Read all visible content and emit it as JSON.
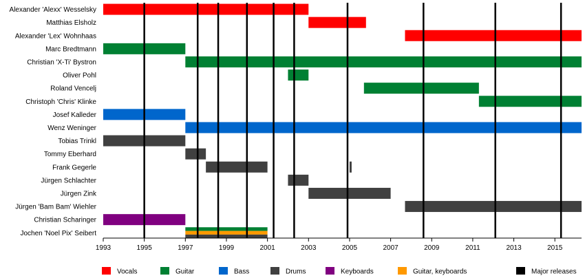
{
  "chart_data": {
    "type": "timeline",
    "title": "",
    "xlabel": "",
    "ylabel": "",
    "xlim": [
      1993,
      2016.3
    ],
    "x_ticks": [
      1993,
      1995,
      1997,
      1999,
      2001,
      2003,
      2005,
      2007,
      2009,
      2011,
      2013,
      2015
    ],
    "role_colors": {
      "Vocals": "#ff0000",
      "Guitar": "#008033",
      "Bass": "#0066cc",
      "Drums": "#404040",
      "Keyboards": "#800080",
      "Guitar, keyboards": "#ff9900",
      "Major releases": "#000000"
    },
    "legend": [
      "Vocals",
      "Guitar",
      "Bass",
      "Drums",
      "Keyboards",
      "Guitar, keyboards",
      "Major releases"
    ],
    "legend_position": "bottom",
    "major_releases": [
      1995,
      1997.6,
      1998.6,
      2000,
      2001.3,
      2002.3,
      2004.9,
      2008.6,
      2012.1,
      2015.3
    ],
    "members": [
      {
        "name": "Alexander 'Alexx' Wesselsky",
        "spans": [
          {
            "role": "Vocals",
            "start": 1993,
            "end": 2003
          }
        ]
      },
      {
        "name": "Matthias Elsholz",
        "spans": [
          {
            "role": "Vocals",
            "start": 2003,
            "end": 2005.8
          }
        ]
      },
      {
        "name": "Alexander 'Lex' Wohnhaas",
        "spans": [
          {
            "role": "Vocals",
            "start": 2007.7,
            "end": 2016.3
          }
        ]
      },
      {
        "name": "Marc Bredtmann",
        "spans": [
          {
            "role": "Guitar",
            "start": 1993,
            "end": 1997
          }
        ]
      },
      {
        "name": "Christian 'X-Ti' Bystron",
        "spans": [
          {
            "role": "Guitar",
            "start": 1997,
            "end": 2016.3
          }
        ]
      },
      {
        "name": "Oliver Pohl",
        "spans": [
          {
            "role": "Guitar",
            "start": 2002,
            "end": 2003
          }
        ]
      },
      {
        "name": "Roland Vencelj",
        "spans": [
          {
            "role": "Guitar",
            "start": 2005.7,
            "end": 2011.3
          }
        ]
      },
      {
        "name": "Christoph 'Chris' Klinke",
        "spans": [
          {
            "role": "Guitar",
            "start": 2011.3,
            "end": 2016.3
          }
        ]
      },
      {
        "name": "Josef Kalleder",
        "spans": [
          {
            "role": "Bass",
            "start": 1993,
            "end": 1997
          }
        ]
      },
      {
        "name": "Wenz Weninger",
        "spans": [
          {
            "role": "Bass",
            "start": 1997,
            "end": 2016.3
          }
        ]
      },
      {
        "name": "Tobias Trinkl",
        "spans": [
          {
            "role": "Drums",
            "start": 1993,
            "end": 1997
          }
        ]
      },
      {
        "name": "Tommy Eberhard",
        "spans": [
          {
            "role": "Drums",
            "start": 1997,
            "end": 1998
          }
        ]
      },
      {
        "name": "Frank Gegerle",
        "spans": [
          {
            "role": "Drums",
            "start": 1998,
            "end": 2001
          },
          {
            "role": "Drums",
            "start": 2005,
            "end": 2005.1
          }
        ]
      },
      {
        "name": "Jürgen Schlachter",
        "spans": [
          {
            "role": "Drums",
            "start": 2002,
            "end": 2003
          }
        ]
      },
      {
        "name": "Jürgen Zink",
        "spans": [
          {
            "role": "Drums",
            "start": 2003,
            "end": 2007
          }
        ]
      },
      {
        "name": "Jürgen 'Bam Bam' Wiehler",
        "spans": [
          {
            "role": "Drums",
            "start": 2007.7,
            "end": 2016.3
          }
        ]
      },
      {
        "name": "Christian Scharinger",
        "spans": [
          {
            "role": "Keyboards",
            "start": 1993,
            "end": 1997
          }
        ]
      },
      {
        "name": "Jochen 'Noel Pix' Seibert",
        "spans": [
          {
            "role": "Guitar",
            "start": 1997,
            "end": 2001
          },
          {
            "role": "Guitar, keyboards",
            "start": 1997,
            "end": 2001
          },
          {
            "role": "Drums",
            "start": 1997,
            "end": 2001
          }
        ]
      }
    ]
  }
}
